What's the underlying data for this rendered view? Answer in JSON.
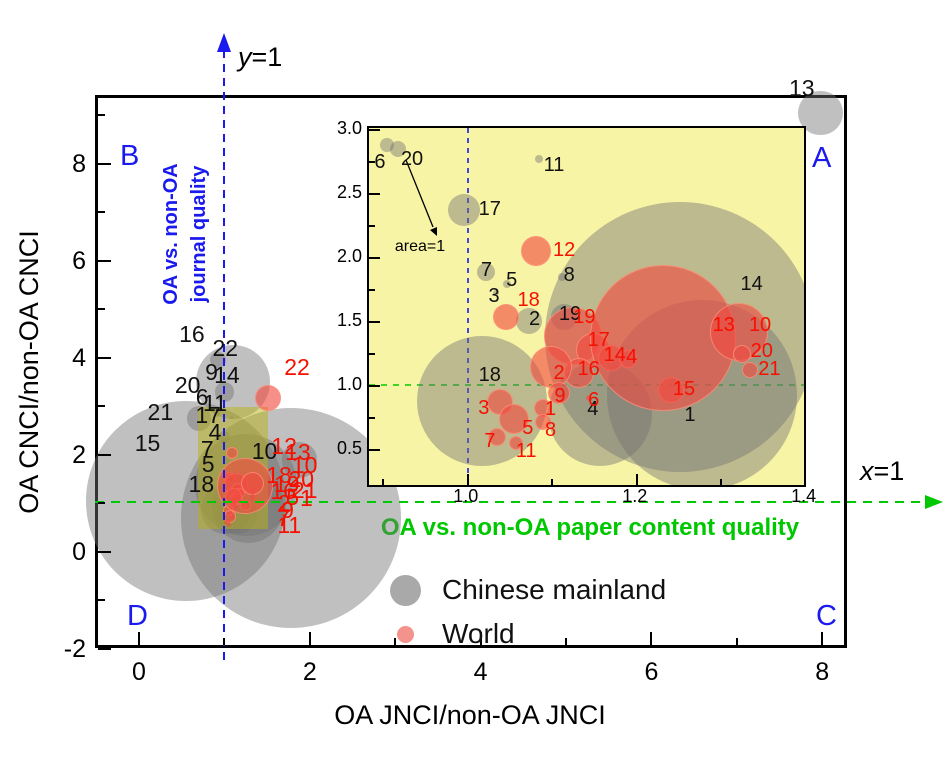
{
  "figure": {
    "colors": {
      "gray_bubble": "rgba(115,115,115,0.45)",
      "red_bubble": "rgba(242,75,65,0.62)",
      "red_bubble_edge": "rgba(255,150,125,0.75)",
      "legend_gray": "#a9a9a9",
      "legend_red": "#f4938b",
      "blue_accent": "#1a1aee",
      "green_accent": "#00c800",
      "label_red": "#f51000",
      "label_black": "#111111",
      "inset_bg": "#f8f4a5",
      "zoom_rect_fill": "rgba(186,178,22,0.5)"
    }
  },
  "chart_data": {
    "type": "scatter",
    "subtype": "bubble",
    "xlabel": "OA JNCI/non-OA JNCI",
    "ylabel": "OA CNCI/non-OA CNCI",
    "corner_labels": {
      "a": "A",
      "b": "B",
      "c": "C",
      "d": "D"
    },
    "ref_lines": {
      "vertical_label_var": "y",
      "vertical_label_eq": "=1",
      "horizontal_label_var": "x",
      "horizontal_label_eq": "=1"
    },
    "guide_texts": {
      "journal_quality": "OA vs. non-OA\njournal quality",
      "paper_quality": "OA vs. non-OA paper content quality",
      "area_annotation": "area=1"
    },
    "legend": {
      "items": [
        {
          "label": "Chinese mainland"
        },
        {
          "label": "World"
        }
      ]
    },
    "main_axes": {
      "xlim": [
        -0.515,
        8.29
      ],
      "ylim": [
        -1.98,
        9.42
      ],
      "xticks": [
        [
          0,
          "0"
        ],
        [
          2,
          "2"
        ],
        [
          4,
          "4"
        ],
        [
          6,
          "6"
        ],
        [
          8,
          "8"
        ]
      ],
      "xminor": [
        1,
        3,
        5,
        7
      ],
      "yticks": [
        [
          -2,
          "-2"
        ],
        [
          0,
          "0"
        ],
        [
          2,
          "2"
        ],
        [
          4,
          "4"
        ],
        [
          6,
          "6"
        ],
        [
          8,
          "8"
        ]
      ],
      "yminor": [
        -1,
        1,
        3,
        5,
        7,
        9
      ]
    },
    "inset_axes": {
      "xlim": [
        0.883,
        1.398
      ],
      "ylim": [
        0.227,
        3.016
      ],
      "xticks": [
        [
          1.0,
          "1.0"
        ],
        [
          1.2,
          "1.2"
        ],
        [
          1.4,
          "1.4"
        ]
      ],
      "xminor": [
        0.9,
        1.1,
        1.3
      ],
      "yticks": [
        [
          0.5,
          "0.5"
        ],
        [
          1.0,
          "1.0"
        ],
        [
          1.5,
          "1.5"
        ],
        [
          2.0,
          "2.0"
        ],
        [
          2.5,
          "2.5"
        ],
        [
          3.0,
          "3.0"
        ]
      ],
      "yminor": [
        0.75,
        1.25,
        1.75,
        2.25,
        2.75
      ]
    },
    "zoom_rect": {
      "x0": 0.69,
      "x1": 1.51,
      "y0": 0.47,
      "y1": 2.99
    },
    "series": [
      {
        "name": "Chinese mainland",
        "points": [
          [
            6,
            0.904,
            2.88,
            7
          ],
          [
            20,
            0.917,
            2.85,
            8
          ],
          [
            11,
            1.084,
            2.77,
            4
          ],
          [
            17,
            0.996,
            2.375,
            16
          ],
          [
            7,
            1.022,
            1.89,
            9
          ],
          [
            5,
            1.046,
            1.8,
            4
          ],
          [
            3,
            1.033,
            1.73,
            3
          ],
          [
            8,
            1.111,
            1.85,
            4
          ],
          [
            2,
            1.073,
            1.51,
            13
          ],
          [
            19,
            1.114,
            1.54,
            13
          ],
          [
            18,
            1.017,
            0.88,
            65
          ],
          [
            4,
            1.156,
            0.78,
            52
          ],
          [
            1,
            1.277,
            0.93,
            95
          ],
          [
            14,
            1.251,
            1.38,
            135
          ],
          [
            13,
            7.98,
            9.05,
            58
          ],
          [
            22,
            1.1,
            3.5,
            97
          ],
          [
            9,
            1.0,
            3.3,
            26
          ],
          [
            16,
            0.92,
            3.95,
            21
          ],
          [
            21,
            0.7,
            2.75,
            32
          ],
          [
            15,
            0.55,
            1.05,
            263
          ],
          [
            12,
            1.78,
            0.7,
            290
          ],
          [
            10,
            1.88,
            1.9,
            47
          ]
        ]
      },
      {
        "name": "World",
        "points": [
          [
            12,
            1.079,
            2.06,
            14
          ],
          [
            18,
            1.044,
            1.55,
            12
          ],
          [
            19,
            1.123,
            1.4,
            28
          ],
          [
            17,
            1.147,
            1.29,
            16
          ],
          [
            14,
            1.168,
            1.23,
            12
          ],
          [
            4,
            1.188,
            1.22,
            8
          ],
          [
            16,
            1.131,
            1.11,
            14
          ],
          [
            2,
            1.097,
            1.16,
            20
          ],
          [
            9,
            1.107,
            0.95,
            10
          ],
          [
            6,
            1.143,
            0.91,
            3
          ],
          [
            1,
            1.088,
            0.84,
            8
          ],
          [
            8,
            1.088,
            0.73,
            7
          ],
          [
            3,
            1.037,
            0.88,
            12
          ],
          [
            5,
            1.054,
            0.75,
            14
          ],
          [
            7,
            1.033,
            0.61,
            8
          ],
          [
            11,
            1.056,
            0.56,
            6
          ],
          [
            15,
            1.239,
            0.98,
            12
          ],
          [
            13,
            1.23,
            1.38,
            72
          ],
          [
            10,
            1.32,
            1.43,
            28
          ],
          [
            20,
            1.324,
            1.26,
            8
          ],
          [
            21,
            1.333,
            1.13,
            7
          ],
          [
            22,
            1.5,
            3.2,
            32
          ]
        ]
      }
    ],
    "labels_main": {
      "black": [
        [
          "13",
          7.76,
          9.57
        ],
        [
          "16",
          0.62,
          4.5
        ],
        [
          "22",
          1.01,
          4.2
        ],
        [
          "9",
          0.85,
          3.7
        ],
        [
          "14",
          1.03,
          3.64
        ],
        [
          "20",
          0.57,
          3.44
        ],
        [
          "6",
          0.74,
          3.2
        ],
        [
          "11",
          0.89,
          3.07
        ],
        [
          "21",
          0.25,
          2.89
        ],
        [
          "17",
          0.81,
          2.82
        ],
        [
          "4",
          0.89,
          2.47
        ],
        [
          "7",
          0.8,
          2.12
        ],
        [
          "5",
          0.81,
          1.82
        ],
        [
          "15",
          0.1,
          2.25
        ],
        [
          "10",
          1.47,
          2.08
        ],
        [
          "18",
          0.73,
          1.4
        ]
      ],
      "red": [
        [
          "22",
          1.85,
          3.81
        ],
        [
          "12",
          1.7,
          2.18
        ],
        [
          "13",
          1.86,
          2.06
        ],
        [
          "10",
          1.94,
          1.8
        ],
        [
          "18",
          1.64,
          1.58
        ],
        [
          "20",
          1.9,
          1.5
        ],
        [
          "19",
          1.73,
          1.4
        ],
        [
          "21",
          1.94,
          1.28
        ],
        [
          "16",
          1.69,
          1.26
        ],
        [
          "5",
          1.8,
          1.14
        ],
        [
          "1",
          1.96,
          1.12
        ],
        [
          "2",
          1.7,
          1.0
        ],
        [
          "9",
          1.74,
          0.86
        ],
        [
          "7",
          1.69,
          0.7
        ],
        [
          "11",
          1.76,
          0.55
        ]
      ]
    },
    "labels_inset": {
      "black": [
        [
          "6",
          0.896,
          2.75
        ],
        [
          "20",
          0.934,
          2.77
        ],
        [
          "11",
          1.102,
          2.73
        ],
        [
          "17",
          1.026,
          2.38
        ],
        [
          "7",
          1.022,
          1.91
        ],
        [
          "5",
          1.052,
          1.83
        ],
        [
          "3",
          1.031,
          1.7
        ],
        [
          "8",
          1.12,
          1.87
        ],
        [
          "2",
          1.079,
          1.52
        ],
        [
          "19",
          1.121,
          1.56
        ],
        [
          "18",
          1.026,
          1.09
        ],
        [
          "4",
          1.148,
          0.82
        ],
        [
          "1",
          1.263,
          0.77
        ],
        [
          "14",
          1.336,
          1.8
        ]
      ],
      "red": [
        [
          "12",
          1.114,
          2.06
        ],
        [
          "18",
          1.072,
          1.67
        ],
        [
          "19",
          1.138,
          1.54
        ],
        [
          "17",
          1.155,
          1.36
        ],
        [
          "14",
          1.174,
          1.24
        ],
        [
          "4",
          1.194,
          1.23
        ],
        [
          "16",
          1.143,
          1.13
        ],
        [
          "2",
          1.108,
          1.1
        ],
        [
          "9",
          1.109,
          0.92
        ],
        [
          "6",
          1.149,
          0.89
        ],
        [
          "1",
          1.098,
          0.82
        ],
        [
          "8",
          1.098,
          0.66
        ],
        [
          "3",
          1.019,
          0.83
        ],
        [
          "5",
          1.071,
          0.67
        ],
        [
          "7",
          1.026,
          0.57
        ],
        [
          "11",
          1.069,
          0.49
        ],
        [
          "15",
          1.256,
          0.98
        ],
        [
          "13",
          1.303,
          1.48
        ],
        [
          "10",
          1.346,
          1.48
        ],
        [
          "20",
          1.348,
          1.27
        ],
        [
          "21",
          1.357,
          1.13
        ]
      ]
    }
  }
}
